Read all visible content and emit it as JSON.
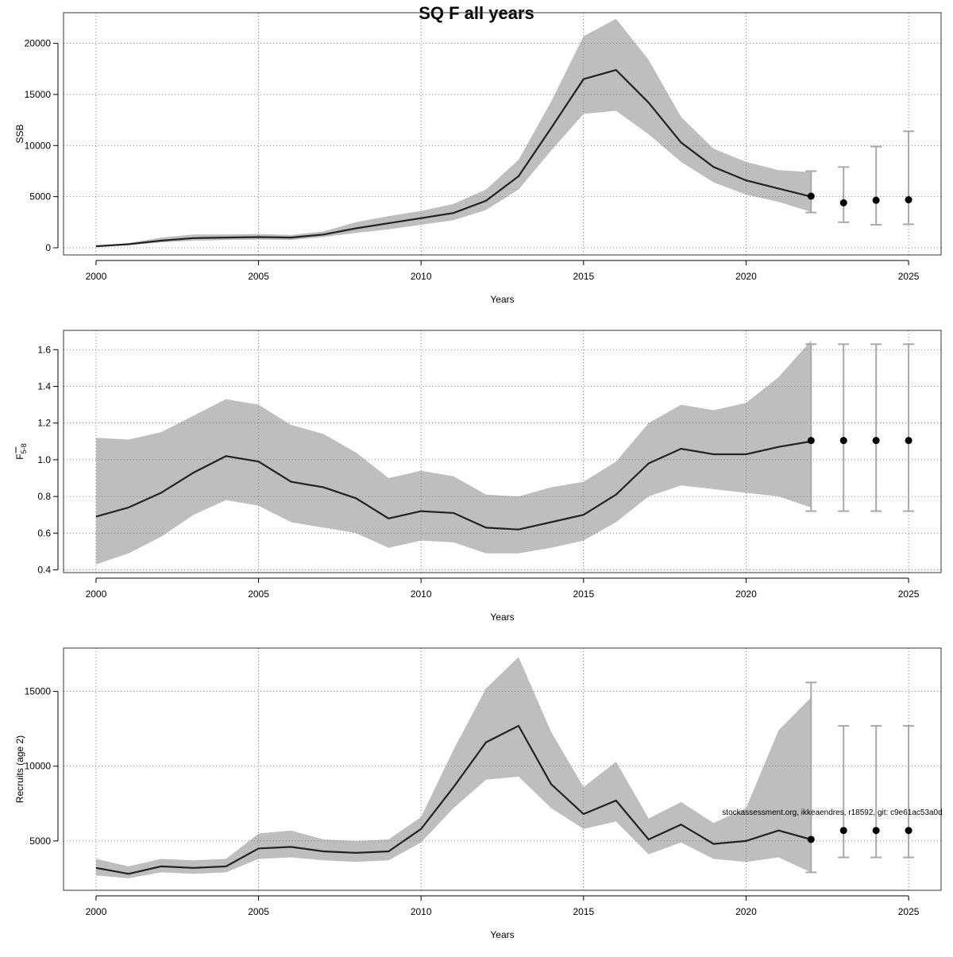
{
  "title": "SQ F all years",
  "watermark": "stockassessment.org, ikkeaendres, r18592, git: c9e61ac53a0d",
  "colors": {
    "band": "#bebebe",
    "line": "#222222",
    "errorbar": "#a9a9a9",
    "point": "#000000",
    "grid": "#666666",
    "frame": "#333333"
  },
  "chart_data": [
    {
      "type": "line",
      "name": "ssb",
      "ylabel": "SSB",
      "xlabel": "Years",
      "xlim": [
        1999.0,
        2026.0
      ],
      "ylim": [
        -700,
        23000
      ],
      "xticks": [
        2000,
        2005,
        2010,
        2015,
        2020,
        2025
      ],
      "yticks": [
        0,
        5000,
        10000,
        15000,
        20000
      ],
      "yticklabels": [
        "0",
        "5000",
        "10000",
        "15000",
        "20000"
      ],
      "grid": true,
      "x": [
        2000,
        2001,
        2002,
        2003,
        2004,
        2005,
        2006,
        2007,
        2008,
        2009,
        2010,
        2011,
        2012,
        2013,
        2014,
        2015,
        2016,
        2017,
        2018,
        2019,
        2020,
        2021,
        2022
      ],
      "estimate": [
        150,
        350,
        700,
        950,
        1000,
        1050,
        1000,
        1300,
        1900,
        2400,
        2900,
        3400,
        4600,
        7000,
        11700,
        16500,
        17400,
        14200,
        10300,
        7900,
        6600,
        5800,
        5000
      ],
      "lower": [
        100,
        270,
        530,
        700,
        750,
        800,
        760,
        1050,
        1450,
        1800,
        2250,
        2700,
        3700,
        5700,
        9500,
        13100,
        13400,
        11100,
        8400,
        6400,
        5200,
        4500,
        3500
      ],
      "upper": [
        230,
        460,
        1000,
        1300,
        1300,
        1350,
        1250,
        1600,
        2500,
        3100,
        3600,
        4300,
        5700,
        8600,
        14300,
        20700,
        22400,
        18400,
        12800,
        9700,
        8400,
        7600,
        7400
      ],
      "forecast": {
        "x": [
          2022,
          2023,
          2024,
          2025
        ],
        "estimate": [
          5050,
          4400,
          4650,
          4700
        ],
        "lower": [
          3450,
          2500,
          2250,
          2300
        ],
        "upper": [
          7500,
          7900,
          9900,
          11400
        ]
      }
    },
    {
      "type": "line",
      "name": "fbar",
      "ylabel": "F",
      "ylabel_sub": "5-8",
      "xlabel": "Years",
      "xlim": [
        1999.0,
        2026.0
      ],
      "ylim": [
        0.385,
        1.705
      ],
      "xticks": [
        2000,
        2005,
        2010,
        2015,
        2020,
        2025
      ],
      "yticks": [
        0.4,
        0.6,
        0.8,
        1.0,
        1.2,
        1.4,
        1.6
      ],
      "yticklabels": [
        "0.4",
        "0.6",
        "0.8",
        "1.0",
        "1.2",
        "1.4",
        "1.6"
      ],
      "grid": true,
      "x": [
        2000,
        2001,
        2002,
        2003,
        2004,
        2005,
        2006,
        2007,
        2008,
        2009,
        2010,
        2011,
        2012,
        2013,
        2014,
        2015,
        2016,
        2017,
        2018,
        2019,
        2020,
        2021,
        2022
      ],
      "estimate": [
        0.69,
        0.74,
        0.82,
        0.93,
        1.02,
        0.99,
        0.88,
        0.85,
        0.79,
        0.68,
        0.72,
        0.71,
        0.63,
        0.62,
        0.66,
        0.7,
        0.81,
        0.98,
        1.06,
        1.03,
        1.03,
        1.07,
        1.1
      ],
      "lower": [
        0.43,
        0.49,
        0.58,
        0.7,
        0.78,
        0.75,
        0.66,
        0.63,
        0.6,
        0.52,
        0.56,
        0.55,
        0.49,
        0.49,
        0.52,
        0.56,
        0.66,
        0.8,
        0.86,
        0.84,
        0.82,
        0.8,
        0.74
      ],
      "upper": [
        1.12,
        1.11,
        1.15,
        1.24,
        1.33,
        1.3,
        1.19,
        1.14,
        1.04,
        0.9,
        0.94,
        0.91,
        0.81,
        0.8,
        0.85,
        0.88,
        0.99,
        1.2,
        1.3,
        1.27,
        1.31,
        1.45,
        1.65
      ],
      "forecast": {
        "x": [
          2022,
          2023,
          2024,
          2025
        ],
        "estimate": [
          1.105,
          1.105,
          1.105,
          1.105
        ],
        "lower": [
          0.72,
          0.72,
          0.72,
          0.72
        ],
        "upper": [
          1.63,
          1.63,
          1.63,
          1.63
        ]
      }
    },
    {
      "type": "line",
      "name": "recruits",
      "ylabel": "Recruits (age 2)",
      "xlabel": "Years",
      "xlim": [
        1999.0,
        2026.0
      ],
      "ylim": [
        1700,
        17900
      ],
      "xticks": [
        2000,
        2005,
        2010,
        2015,
        2020,
        2025
      ],
      "yticks": [
        5000,
        10000,
        15000
      ],
      "yticklabels": [
        "5000",
        "10000",
        "15000"
      ],
      "grid": true,
      "x": [
        2000,
        2001,
        2002,
        2003,
        2004,
        2005,
        2006,
        2007,
        2008,
        2009,
        2010,
        2011,
        2012,
        2013,
        2014,
        2015,
        2016,
        2017,
        2018,
        2019,
        2020,
        2021,
        2022
      ],
      "estimate": [
        3200,
        2800,
        3300,
        3200,
        3300,
        4500,
        4600,
        4300,
        4200,
        4300,
        5800,
        8600,
        11600,
        12700,
        8800,
        6800,
        7700,
        5100,
        6100,
        4800,
        5000,
        5700,
        5100
      ],
      "lower": [
        2700,
        2500,
        2900,
        2800,
        2900,
        3800,
        3900,
        3700,
        3600,
        3700,
        4900,
        7200,
        9100,
        9300,
        7200,
        5800,
        6300,
        4100,
        4900,
        3800,
        3600,
        3900,
        2900
      ],
      "upper": [
        3800,
        3300,
        3800,
        3700,
        3800,
        5500,
        5700,
        5100,
        5000,
        5100,
        6600,
        11100,
        15200,
        17300,
        12300,
        8600,
        10300,
        6500,
        7600,
        6200,
        7200,
        12400,
        14600
      ],
      "forecast": {
        "x": [
          2022,
          2023,
          2024,
          2025
        ],
        "estimate": [
          5100,
          5700,
          5700,
          5700
        ],
        "lower": [
          2900,
          3900,
          3900,
          3900
        ],
        "upper": [
          15600,
          12700,
          12700,
          12700
        ]
      }
    }
  ]
}
